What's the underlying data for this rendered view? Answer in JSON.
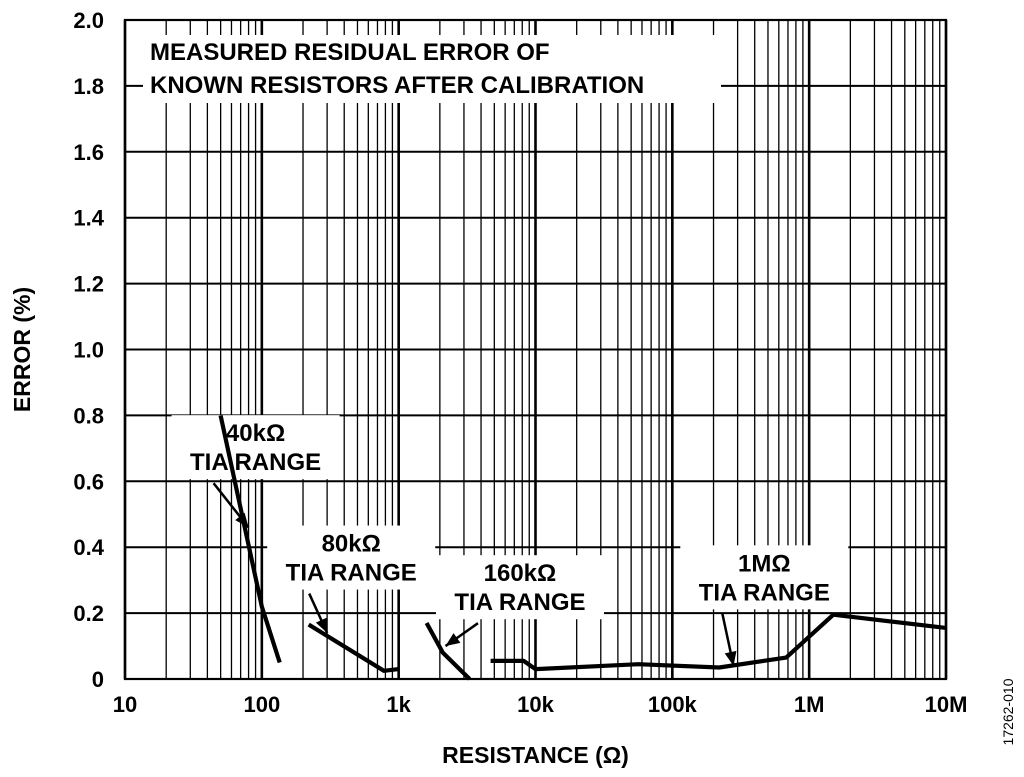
{
  "chart_data": {
    "type": "line",
    "title_lines": [
      "MEASURED RESIDUAL ERROR OF",
      "KNOWN RESISTORS AFTER CALIBRATION"
    ],
    "xlabel": "RESISTANCE (Ω)",
    "ylabel": "ERROR (%)",
    "x_scale": "log",
    "xlim": [
      10,
      10000000
    ],
    "ylim": [
      0,
      2.0
    ],
    "grid": true,
    "x_ticks": [
      {
        "value": 10,
        "label": "10"
      },
      {
        "value": 100,
        "label": "100"
      },
      {
        "value": 1000,
        "label": "1k"
      },
      {
        "value": 10000,
        "label": "10k"
      },
      {
        "value": 100000,
        "label": "100k"
      },
      {
        "value": 1000000,
        "label": "1M"
      },
      {
        "value": 10000000,
        "label": "10M"
      }
    ],
    "y_ticks": [
      {
        "value": 0,
        "label": "0"
      },
      {
        "value": 0.2,
        "label": "0.2"
      },
      {
        "value": 0.4,
        "label": "0.4"
      },
      {
        "value": 0.6,
        "label": "0.6"
      },
      {
        "value": 0.8,
        "label": "0.8"
      },
      {
        "value": 1.0,
        "label": "1.0"
      },
      {
        "value": 1.2,
        "label": "1.2"
      },
      {
        "value": 1.4,
        "label": "1.4"
      },
      {
        "value": 1.6,
        "label": "1.6"
      },
      {
        "value": 1.8,
        "label": "1.8"
      },
      {
        "value": 2.0,
        "label": "2.0"
      }
    ],
    "series": [
      {
        "name": "40kΩ TIA RANGE",
        "points": [
          [
            50,
            0.8
          ],
          [
            100,
            0.22
          ],
          [
            135,
            0.05
          ]
        ]
      },
      {
        "name": "80kΩ TIA RANGE",
        "points": [
          [
            220,
            0.165
          ],
          [
            780,
            0.025
          ],
          [
            1000,
            0.03
          ]
        ]
      },
      {
        "name": "160kΩ TIA RANGE",
        "points": [
          [
            1600,
            0.17
          ],
          [
            2100,
            0.08
          ],
          [
            3300,
            0.0
          ]
        ]
      },
      {
        "name": "1MΩ TIA RANGE",
        "points": [
          [
            4700,
            0.055
          ],
          [
            8200,
            0.055
          ],
          [
            10000,
            0.03
          ],
          [
            56000,
            0.045
          ],
          [
            220000,
            0.035
          ],
          [
            680000,
            0.065
          ],
          [
            1500000,
            0.195
          ],
          [
            10000000,
            0.155
          ]
        ]
      }
    ],
    "annotations": [
      {
        "lines": [
          "40kΩ",
          "TIA RANGE"
        ],
        "x": 90,
        "y": 0.74,
        "arrow_to": [
          80,
          0.46
        ]
      },
      {
        "lines": [
          "80kΩ",
          "TIA RANGE"
        ],
        "x": 450,
        "y": 0.405,
        "arrow_to": [
          300,
          0.14
        ]
      },
      {
        "lines": [
          "160kΩ",
          "TIA RANGE"
        ],
        "x": 7700,
        "y": 0.315,
        "arrow_to": [
          2200,
          0.1
        ]
      },
      {
        "lines": [
          "1MΩ",
          "TIA RANGE"
        ],
        "x": 470000,
        "y": 0.345,
        "arrow_to": [
          280000,
          0.04
        ]
      }
    ]
  },
  "figure_id": "17262-010"
}
